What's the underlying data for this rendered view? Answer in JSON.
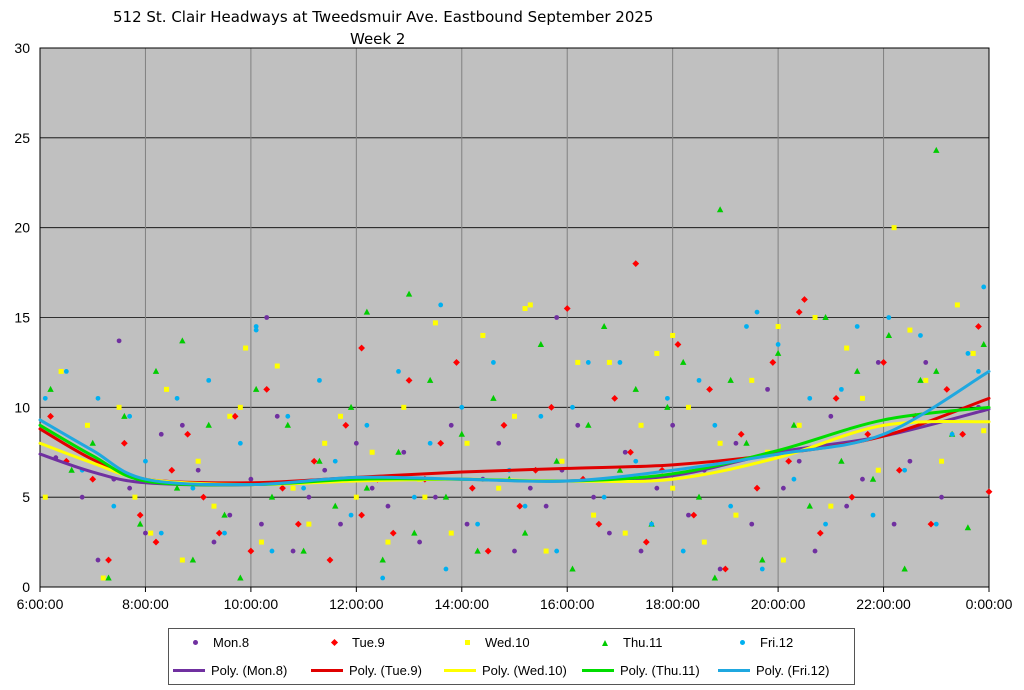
{
  "chart_data": {
    "type": "scatter",
    "title": "512 St. Clair Headways at Tweedsmuir Ave. Eastbound September 2025",
    "subtitle": "Week 2",
    "xlabel": "",
    "ylabel": "",
    "x_tick_labels": [
      "6:00:00",
      "8:00:00",
      "10:00:00",
      "12:00:00",
      "14:00:00",
      "16:00:00",
      "18:00:00",
      "20:00:00",
      "22:00:00",
      "0:00:00"
    ],
    "x_range_hours": [
      6,
      24
    ],
    "ylim": [
      0,
      30
    ],
    "y_ticks": [
      "0",
      "5",
      "10",
      "15",
      "20",
      "25",
      "30"
    ],
    "grid": true,
    "legend_position": "bottom",
    "background": "#c0c0c0",
    "series": [
      {
        "name": "Mon.8",
        "color": "#7030a0",
        "marker": "circle",
        "x": [
          6.3,
          6.8,
          7.1,
          7.4,
          7.7,
          8.0,
          8.3,
          8.7,
          9.0,
          9.3,
          9.6,
          10.0,
          10.2,
          10.5,
          10.8,
          11.1,
          11.4,
          11.7,
          12.0,
          12.3,
          12.6,
          12.9,
          13.2,
          13.5,
          13.8,
          14.1,
          14.4,
          14.7,
          15.0,
          15.3,
          15.6,
          15.9,
          16.2,
          16.5,
          16.8,
          17.1,
          17.4,
          17.7,
          18.0,
          18.3,
          18.6,
          18.9,
          19.2,
          19.5,
          19.8,
          20.1,
          20.4,
          20.7,
          21.0,
          21.3,
          21.6,
          21.9,
          22.2,
          22.5,
          22.8,
          23.1,
          23.5,
          23.8,
          7.5,
          10.3,
          15.8
        ],
        "y": [
          7.2,
          5.0,
          1.5,
          6.0,
          5.5,
          3.0,
          8.5,
          9.0,
          6.5,
          2.5,
          4.0,
          6.0,
          3.5,
          9.5,
          2.0,
          5.0,
          6.5,
          3.5,
          8.0,
          5.5,
          4.5,
          7.5,
          2.5,
          5.0,
          9.0,
          3.5,
          6.0,
          8.0,
          2.0,
          5.5,
          4.5,
          6.5,
          9.0,
          5.0,
          3.0,
          7.5,
          2.0,
          5.5,
          9.0,
          4.0,
          6.5,
          1.0,
          8.0,
          3.5,
          11.0,
          5.5,
          7.0,
          2.0,
          9.5,
          4.5,
          6.0,
          12.5,
          3.5,
          7.0,
          12.5,
          5.0,
          8.5,
          10.0,
          13.7,
          15.0,
          15.0
        ]
      },
      {
        "name": "Tue.9",
        "color": "#ff0000",
        "marker": "diamond",
        "x": [
          6.2,
          6.5,
          7.0,
          7.3,
          7.6,
          7.9,
          8.2,
          8.5,
          8.8,
          9.1,
          9.4,
          9.7,
          10.0,
          10.3,
          10.6,
          10.9,
          11.2,
          11.5,
          11.8,
          12.1,
          12.4,
          12.7,
          13.0,
          13.3,
          13.6,
          13.9,
          14.2,
          14.5,
          14.8,
          15.1,
          15.4,
          15.7,
          16.0,
          16.3,
          16.6,
          16.9,
          17.2,
          17.5,
          17.8,
          18.1,
          18.4,
          18.7,
          19.0,
          19.3,
          19.6,
          19.9,
          20.2,
          20.5,
          20.8,
          21.1,
          21.4,
          21.7,
          22.0,
          22.3,
          22.6,
          22.9,
          23.2,
          23.5,
          23.8,
          24.0,
          12.1,
          17.3,
          20.4
        ],
        "y": [
          9.5,
          7.0,
          6.0,
          1.5,
          8.0,
          4.0,
          2.5,
          6.5,
          8.5,
          5.0,
          3.0,
          9.5,
          2.0,
          11.0,
          5.5,
          3.5,
          7.0,
          1.5,
          9.0,
          4.0,
          6.0,
          3.0,
          11.5,
          6.0,
          8.0,
          12.5,
          5.5,
          2.0,
          9.0,
          4.5,
          6.5,
          10.0,
          15.5,
          6.0,
          3.5,
          10.5,
          7.5,
          2.5,
          6.5,
          13.5,
          4.0,
          11.0,
          1.0,
          8.5,
          5.5,
          12.5,
          7.0,
          16.0,
          3.0,
          10.5,
          5.0,
          8.5,
          12.5,
          6.5,
          9.5,
          3.5,
          11.0,
          8.5,
          14.5,
          5.3,
          13.3,
          18.0,
          15.3
        ]
      },
      {
        "name": "Wed.10",
        "color": "#ffff00",
        "marker": "square",
        "x": [
          6.1,
          6.4,
          6.9,
          7.2,
          7.5,
          7.8,
          8.1,
          8.4,
          8.7,
          9.0,
          9.3,
          9.6,
          9.9,
          10.2,
          10.5,
          10.8,
          11.1,
          11.4,
          11.7,
          12.0,
          12.3,
          12.6,
          12.9,
          13.2,
          13.5,
          13.8,
          14.1,
          14.4,
          14.7,
          15.0,
          15.3,
          15.6,
          15.9,
          16.2,
          16.5,
          16.8,
          17.1,
          17.4,
          17.7,
          18.0,
          18.3,
          18.6,
          18.9,
          19.2,
          19.5,
          19.8,
          20.1,
          20.4,
          20.7,
          21.0,
          21.3,
          21.6,
          21.9,
          22.2,
          22.5,
          22.8,
          23.1,
          23.4,
          23.7,
          23.9,
          9.8,
          13.3,
          15.2,
          18.0,
          20.0
        ],
        "y": [
          5.0,
          12.0,
          9.0,
          0.5,
          10.0,
          5.0,
          3.0,
          11.0,
          1.5,
          7.0,
          4.5,
          9.5,
          13.3,
          2.5,
          12.3,
          5.5,
          3.5,
          8.0,
          9.5,
          5.0,
          7.5,
          2.5,
          10.0,
          6.0,
          14.7,
          3.0,
          8.0,
          14.0,
          5.5,
          9.5,
          15.7,
          2.0,
          7.0,
          12.5,
          4.0,
          12.5,
          3.0,
          9.0,
          13.0,
          5.5,
          10.0,
          2.5,
          8.0,
          4.0,
          11.5,
          7.5,
          1.5,
          9.0,
          15.0,
          4.5,
          13.3,
          10.5,
          6.5,
          20.0,
          14.3,
          11.5,
          7.0,
          15.7,
          13.0,
          8.7,
          10.0,
          5.0,
          15.5,
          14.0,
          14.5
        ]
      },
      {
        "name": "Thu.11",
        "color": "#00cc00",
        "marker": "triangle",
        "x": [
          6.2,
          6.6,
          7.0,
          7.3,
          7.6,
          7.9,
          8.2,
          8.6,
          8.9,
          9.2,
          9.5,
          9.8,
          10.1,
          10.4,
          10.7,
          11.0,
          11.3,
          11.6,
          11.9,
          12.2,
          12.5,
          12.8,
          13.1,
          13.4,
          13.7,
          14.0,
          14.3,
          14.6,
          14.9,
          15.2,
          15.5,
          15.8,
          16.1,
          16.4,
          16.7,
          17.0,
          17.3,
          17.6,
          17.9,
          18.2,
          18.5,
          18.8,
          19.1,
          19.4,
          19.7,
          20.0,
          20.3,
          20.6,
          20.9,
          21.2,
          21.5,
          21.8,
          22.1,
          22.4,
          22.7,
          23.0,
          23.3,
          23.6,
          23.9,
          8.7,
          12.2,
          13.0,
          18.9,
          23.0
        ],
        "y": [
          11.0,
          6.5,
          8.0,
          0.5,
          9.5,
          3.5,
          12.0,
          5.5,
          1.5,
          9.0,
          4.0,
          0.5,
          11.0,
          5.0,
          9.0,
          2.0,
          7.0,
          4.5,
          10.0,
          5.5,
          1.5,
          7.5,
          3.0,
          11.5,
          5.0,
          8.5,
          2.0,
          10.5,
          6.0,
          3.0,
          13.5,
          7.0,
          1.0,
          9.0,
          14.5,
          6.5,
          11.0,
          3.5,
          10.0,
          12.5,
          5.0,
          0.5,
          11.5,
          8.0,
          1.5,
          13.0,
          9.0,
          4.5,
          15.0,
          7.0,
          12.0,
          6.0,
          14.0,
          1.0,
          11.5,
          12.0,
          8.5,
          3.3,
          13.5,
          13.7,
          15.3,
          16.3,
          21.0,
          24.3
        ]
      },
      {
        "name": "Fri.12",
        "color": "#00b0f0",
        "marker": "circle",
        "x": [
          6.1,
          6.5,
          6.8,
          7.1,
          7.4,
          7.7,
          8.0,
          8.3,
          8.6,
          8.9,
          9.2,
          9.5,
          9.8,
          10.1,
          10.4,
          10.7,
          11.0,
          11.3,
          11.6,
          11.9,
          12.2,
          12.5,
          12.8,
          13.1,
          13.4,
          13.7,
          14.0,
          14.3,
          14.6,
          14.9,
          15.2,
          15.5,
          15.8,
          16.1,
          16.4,
          16.7,
          17.0,
          17.3,
          17.6,
          17.9,
          18.2,
          18.5,
          18.8,
          19.1,
          19.4,
          19.7,
          20.0,
          20.3,
          20.6,
          20.9,
          21.2,
          21.5,
          21.8,
          22.1,
          22.4,
          22.7,
          23.0,
          23.3,
          23.6,
          23.9,
          10.1,
          13.6,
          19.6,
          23.8
        ],
        "y": [
          10.5,
          12.0,
          6.5,
          10.5,
          4.5,
          9.5,
          7.0,
          3.0,
          10.5,
          5.5,
          11.5,
          3.0,
          8.0,
          14.5,
          2.0,
          9.5,
          5.5,
          11.5,
          7.0,
          4.0,
          9.0,
          0.5,
          12.0,
          5.0,
          8.0,
          1.0,
          10.0,
          3.5,
          12.5,
          6.5,
          4.5,
          9.5,
          2.0,
          10.0,
          12.5,
          5.0,
          12.5,
          7.0,
          3.5,
          10.5,
          2.0,
          11.5,
          9.0,
          4.5,
          14.5,
          1.0,
          13.5,
          6.0,
          10.5,
          3.5,
          11.0,
          14.5,
          4.0,
          15.0,
          6.5,
          14.0,
          3.5,
          8.5,
          13.0,
          16.7,
          14.3,
          15.7,
          15.3,
          12.0
        ]
      }
    ],
    "trendlines": [
      {
        "name": "Poly. (Mon.8)",
        "color": "#7030a0",
        "x": [
          6,
          7,
          8,
          10,
          12,
          14,
          16,
          18,
          20,
          22,
          24
        ],
        "y": [
          7.4,
          6.4,
          5.8,
          5.7,
          6.0,
          6.0,
          5.9,
          6.2,
          7.5,
          8.4,
          9.9
        ]
      },
      {
        "name": "Poly. (Tue.9)",
        "color": "#e00000",
        "x": [
          6,
          7,
          8,
          10,
          12,
          14,
          16,
          18,
          20,
          22,
          24
        ],
        "y": [
          8.8,
          7.1,
          6.0,
          5.8,
          6.1,
          6.4,
          6.6,
          6.8,
          7.4,
          8.4,
          10.5
        ]
      },
      {
        "name": "Poly. (Wed.10)",
        "color": "#ffff00",
        "x": [
          6,
          7,
          8,
          10,
          12,
          14,
          16,
          18,
          20,
          22,
          24
        ],
        "y": [
          8.0,
          6.9,
          6.0,
          5.7,
          5.9,
          6.0,
          5.9,
          6.0,
          7.2,
          9.0,
          9.2
        ]
      },
      {
        "name": "Poly. (Thu.11)",
        "color": "#00dd00",
        "x": [
          6,
          7,
          8,
          10,
          12,
          14,
          16,
          18,
          20,
          22,
          24
        ],
        "y": [
          9.0,
          7.3,
          5.9,
          5.7,
          6.0,
          6.0,
          5.9,
          6.3,
          7.6,
          9.3,
          10.0
        ]
      },
      {
        "name": "Poly. (Fri.12)",
        "color": "#1fa8e0",
        "x": [
          6,
          7,
          8,
          10,
          12,
          14,
          16,
          18,
          20,
          22,
          24
        ],
        "y": [
          9.3,
          7.6,
          6.0,
          5.7,
          6.1,
          6.0,
          5.9,
          6.5,
          7.4,
          8.5,
          12.0
        ]
      }
    ]
  }
}
